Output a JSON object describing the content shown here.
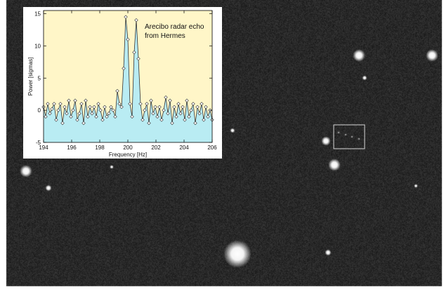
{
  "chart_data": {
    "type": "line",
    "annotation_lines": [
      "Arecibo radar echo",
      "from Hermes"
    ],
    "xlabel": "Frequency [Hz]",
    "ylabel": "Power [sigmas]",
    "xlim": [
      194,
      206
    ],
    "ylim": [
      -5,
      15.5
    ],
    "x_ticks": [
      194,
      196,
      198,
      200,
      202,
      204,
      206
    ],
    "y_ticks": [
      -5,
      0,
      5,
      10,
      15
    ],
    "background_color": "#fff6c8",
    "fill_color": "#b9ecf3",
    "line_color": "#333333",
    "series": [
      {
        "x": [
          194.0,
          194.15,
          194.3,
          194.45,
          194.6,
          194.75,
          194.9,
          195.05,
          195.2,
          195.35,
          195.5,
          195.65,
          195.8,
          195.95,
          196.1,
          196.25,
          196.4,
          196.55,
          196.7,
          196.85,
          197.0,
          197.15,
          197.3,
          197.45,
          197.6,
          197.75,
          197.9,
          198.05,
          198.2,
          198.35,
          198.5,
          198.65,
          198.8,
          198.95,
          199.1,
          199.25,
          199.4,
          199.55,
          199.7,
          199.85,
          200.0,
          200.15,
          200.3,
          200.45,
          200.6,
          200.75,
          200.9,
          201.05,
          201.2,
          201.35,
          201.5,
          201.65,
          201.8,
          201.95,
          202.1,
          202.25,
          202.4,
          202.55,
          202.7,
          202.85,
          203.0,
          203.15,
          203.3,
          203.45,
          203.6,
          203.75,
          203.9,
          204.05,
          204.2,
          204.35,
          204.5,
          204.65,
          204.8,
          204.95,
          205.1,
          205.25,
          205.4,
          205.55,
          205.7,
          205.85,
          206.0
        ],
        "y": [
          0.5,
          -1.0,
          1.0,
          -0.5,
          0.2,
          1.0,
          -1.5,
          0.0,
          1.0,
          -2.0,
          0.5,
          -0.5,
          1.5,
          -1.0,
          0.0,
          1.5,
          -1.5,
          -0.5,
          1.0,
          -2.0,
          1.5,
          -1.0,
          0.5,
          -0.5,
          0.5,
          -1.0,
          1.0,
          0.0,
          -1.5,
          0.5,
          -1.0,
          -0.5,
          0.5,
          0.0,
          -1.0,
          3.0,
          1.0,
          0.5,
          6.5,
          14.5,
          11.0,
          1.0,
          -1.0,
          9.0,
          14.0,
          8.0,
          1.0,
          -1.5,
          0.0,
          1.0,
          -2.0,
          1.5,
          -0.5,
          0.5,
          -1.0,
          0.5,
          -1.5,
          0.0,
          2.0,
          -0.5,
          1.5,
          -2.0,
          0.5,
          -1.0,
          1.0,
          -0.5,
          0.5,
          -1.5,
          1.5,
          -1.0,
          0.0,
          1.0,
          -2.0,
          0.5,
          -0.5,
          1.0,
          -1.5,
          0.5,
          -1.0,
          0.0,
          -1.5
        ]
      }
    ]
  }
}
